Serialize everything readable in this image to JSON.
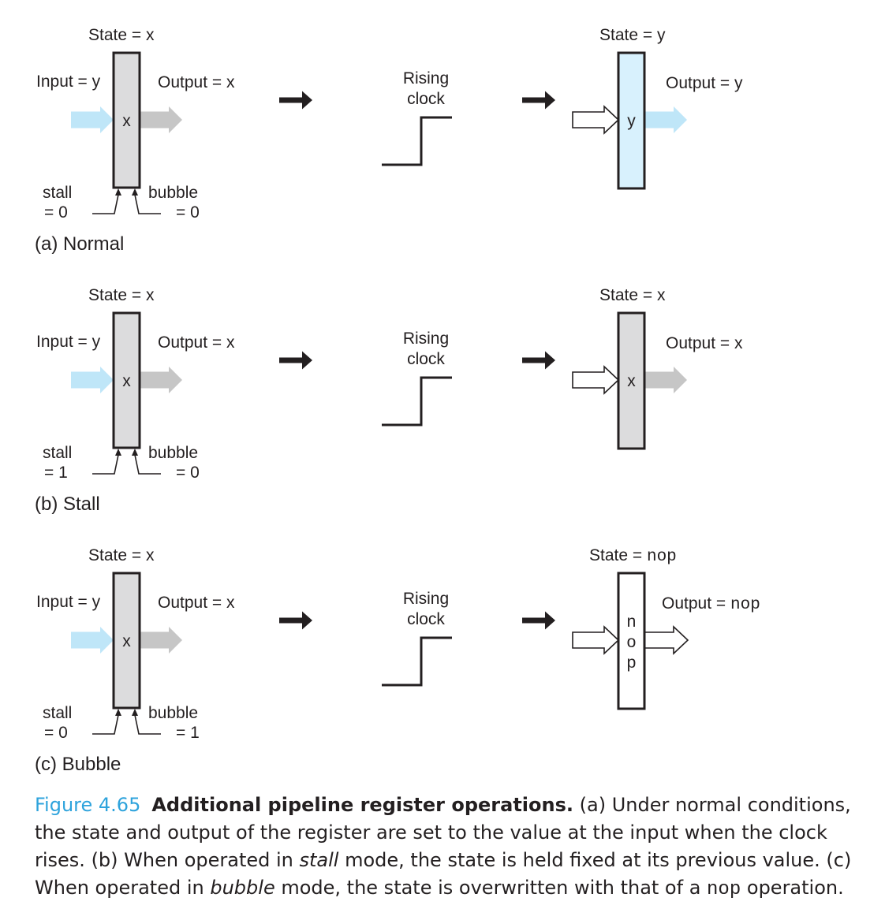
{
  "colors": {
    "stroke": "#231f20",
    "reg_gray": "#dcdcdd",
    "reg_blue": "#d8f1fd",
    "arrow_blue": "#bfe6f8",
    "arrow_gray": "#c6c6c6",
    "caption_accent": "#2ea3dc"
  },
  "panels": [
    {
      "label": "(a) Normal",
      "before": {
        "state": "State = x",
        "input": "Input = y",
        "output": "Output = x",
        "content": "x",
        "stall": "stall",
        "stall_val": "= 0",
        "bubble": "bubble",
        "bubble_val": "= 0"
      },
      "clock": {
        "line1": "Rising",
        "line2": "clock"
      },
      "after": {
        "state_prefix": "State = ",
        "state_value": "y",
        "output_prefix": "Output = ",
        "output_value": "y",
        "content": [
          "y"
        ]
      }
    },
    {
      "label": "(b) Stall",
      "before": {
        "state": "State = x",
        "input": "Input = y",
        "output": "Output = x",
        "content": "x",
        "stall": "stall",
        "stall_val": "= 1",
        "bubble": "bubble",
        "bubble_val": "= 0"
      },
      "clock": {
        "line1": "Rising",
        "line2": "clock"
      },
      "after": {
        "state_prefix": "State = ",
        "state_value": "x",
        "output_prefix": "Output = ",
        "output_value": "x",
        "content": [
          "x"
        ]
      }
    },
    {
      "label": "(c) Bubble",
      "before": {
        "state": "State = x",
        "input": "Input = y",
        "output": "Output = x",
        "content": "x",
        "stall": "stall",
        "stall_val": "= 0",
        "bubble": "bubble",
        "bubble_val": "= 1"
      },
      "clock": {
        "line1": "Rising",
        "line2": "clock"
      },
      "after": {
        "state_prefix": "State = ",
        "state_value": "nop",
        "output_prefix": "Output = ",
        "output_value": "nop",
        "content": [
          "n",
          "o",
          "p"
        ]
      }
    }
  ],
  "caption": {
    "number": "Figure 4.65",
    "title": "Additional pipeline register operations.",
    "part1": " (a) Under normal conditions, the state and output of the register are set to the value at the input when the clock rises. (b) When operated in ",
    "stall_word": "stall",
    "part2": " mode, the state is held fixed at its previous value. (c) When operated in ",
    "bubble_word": "bubble",
    "part3": " mode, the state is overwritten with that of a ",
    "nop_word": "nop",
    "part4": " operation."
  }
}
